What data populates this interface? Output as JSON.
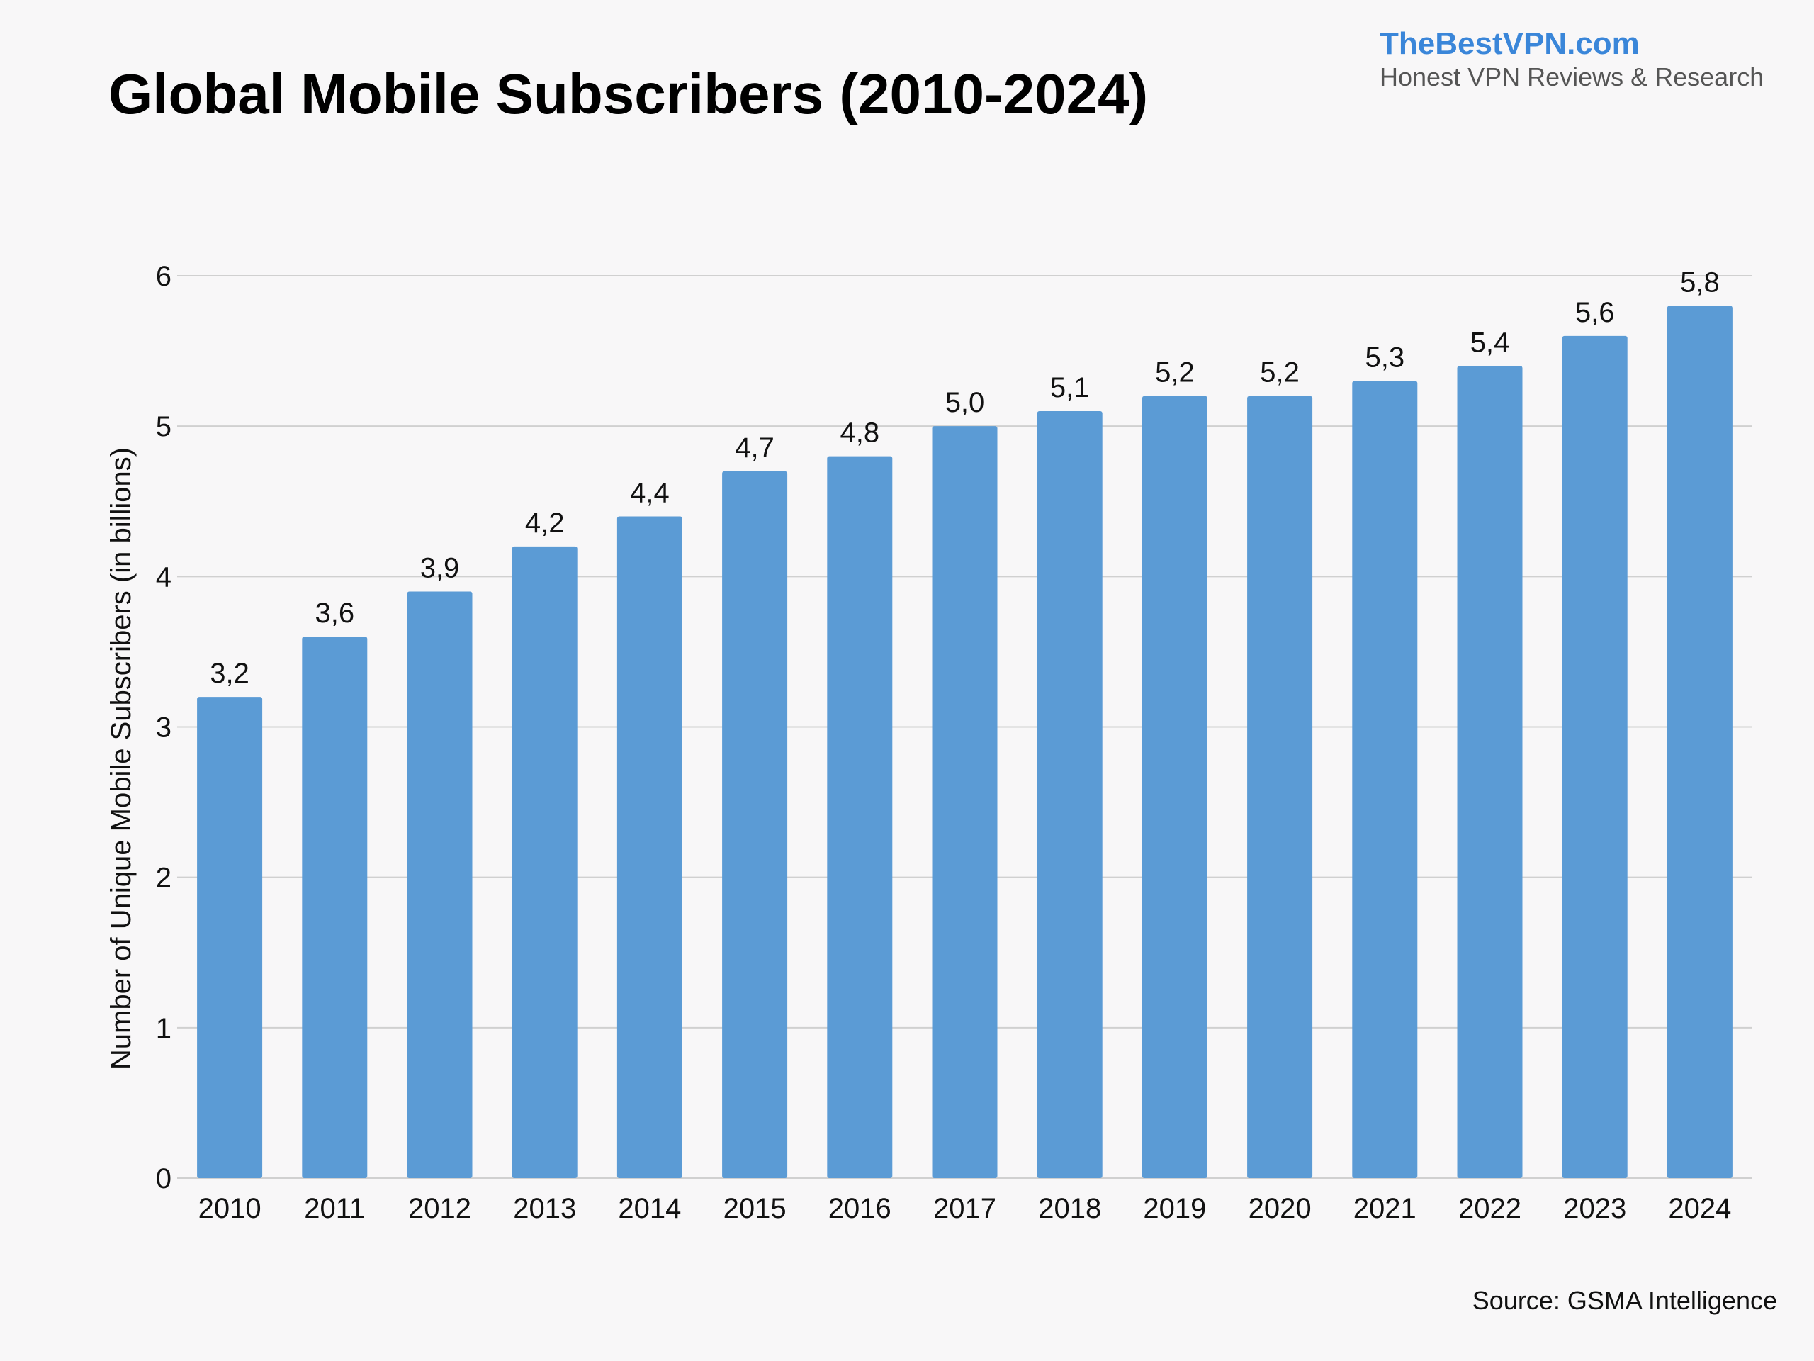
{
  "header": {
    "title": "Global Mobile Subscribers (2010-2024)"
  },
  "brand": {
    "name": "TheBestVPN.com",
    "tagline": "Honest VPN Reviews & Research",
    "name_color": "#3a86d9",
    "tagline_color": "#555555"
  },
  "source": {
    "text": "Source: GSMA Intelligence"
  },
  "colors": {
    "bar": "#5b9bd5",
    "grid": "#d0d0d0",
    "background": "#f8f7f8"
  },
  "chart_data": {
    "type": "bar",
    "title": "Global Mobile Subscribers (2010-2024)",
    "xlabel": "",
    "ylabel": "Number of Unique Mobile Subscribers (in billions)",
    "ylim": [
      0,
      6
    ],
    "yticks": [
      0,
      1,
      2,
      3,
      4,
      5,
      6
    ],
    "grid": true,
    "legend": "none",
    "categories": [
      "2010",
      "2011",
      "2012",
      "2013",
      "2014",
      "2015",
      "2016",
      "2017",
      "2018",
      "2019",
      "2020",
      "2021",
      "2022",
      "2023",
      "2024"
    ],
    "values": [
      3.2,
      3.6,
      3.9,
      4.2,
      4.4,
      4.7,
      4.8,
      5.0,
      5.1,
      5.2,
      5.2,
      5.3,
      5.4,
      5.6,
      5.8
    ],
    "data_labels": [
      "3,2",
      "3,6",
      "3,9",
      "4,2",
      "4,4",
      "4,7",
      "4,8",
      "5,0",
      "5,1",
      "5,2",
      "5,2",
      "5,3",
      "5,4",
      "5,6",
      "5,8"
    ]
  }
}
